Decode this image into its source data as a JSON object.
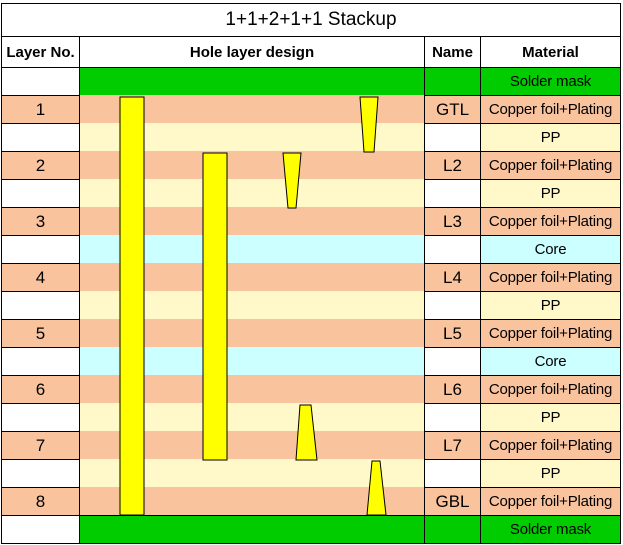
{
  "title": "1+1+2+1+1 Stackup",
  "headers": {
    "layer_no": "Layer No.",
    "hole_design": "Hole layer design",
    "name": "Name",
    "material": "Material"
  },
  "rows": [
    {
      "type": "mask",
      "layer": "",
      "name": "",
      "material": "Solder mask"
    },
    {
      "type": "copper",
      "layer": "1",
      "name": "GTL",
      "material": "Copper foil+Plating"
    },
    {
      "type": "pp",
      "layer": "",
      "name": "",
      "material": "PP"
    },
    {
      "type": "copper",
      "layer": "2",
      "name": "L2",
      "material": "Copper foil+Plating"
    },
    {
      "type": "pp",
      "layer": "",
      "name": "",
      "material": "PP"
    },
    {
      "type": "copper",
      "layer": "3",
      "name": "L3",
      "material": "Copper foil+Plating"
    },
    {
      "type": "core",
      "layer": "",
      "name": "",
      "material": "Core"
    },
    {
      "type": "copper",
      "layer": "4",
      "name": "L4",
      "material": "Copper foil+Plating"
    },
    {
      "type": "pp",
      "layer": "",
      "name": "",
      "material": "PP"
    },
    {
      "type": "copper",
      "layer": "5",
      "name": "L5",
      "material": "Copper foil+Plating"
    },
    {
      "type": "core",
      "layer": "",
      "name": "",
      "material": "Core"
    },
    {
      "type": "copper",
      "layer": "6",
      "name": "L6",
      "material": "Copper foil+Plating"
    },
    {
      "type": "pp",
      "layer": "",
      "name": "",
      "material": "PP"
    },
    {
      "type": "copper",
      "layer": "7",
      "name": "L7",
      "material": "Copper foil+Plating"
    },
    {
      "type": "pp",
      "layer": "",
      "name": "",
      "material": "PP"
    },
    {
      "type": "copper",
      "layer": "8",
      "name": "GBL",
      "material": "Copper foil+Plating"
    },
    {
      "type": "mask",
      "layer": "",
      "name": "",
      "material": "Solder mask"
    }
  ],
  "colors": {
    "copper": "#f9c39e",
    "pp": "#fff9c9",
    "core": "#ccffff",
    "solder_mask": "#00cc00",
    "via": "#ffff00"
  },
  "vias": [
    {
      "kind": "through-hole",
      "from_layer": "1",
      "to_layer": "8"
    },
    {
      "kind": "buried-hole",
      "from_layer": "2",
      "to_layer": "7"
    },
    {
      "kind": "blind-microvia",
      "from_layer": "1",
      "to_layer": "2"
    },
    {
      "kind": "buried-microvia",
      "from_layer": "2",
      "to_layer": "3"
    },
    {
      "kind": "buried-microvia",
      "from_layer": "6",
      "to_layer": "7"
    },
    {
      "kind": "blind-microvia",
      "from_layer": "7",
      "to_layer": "8"
    }
  ]
}
